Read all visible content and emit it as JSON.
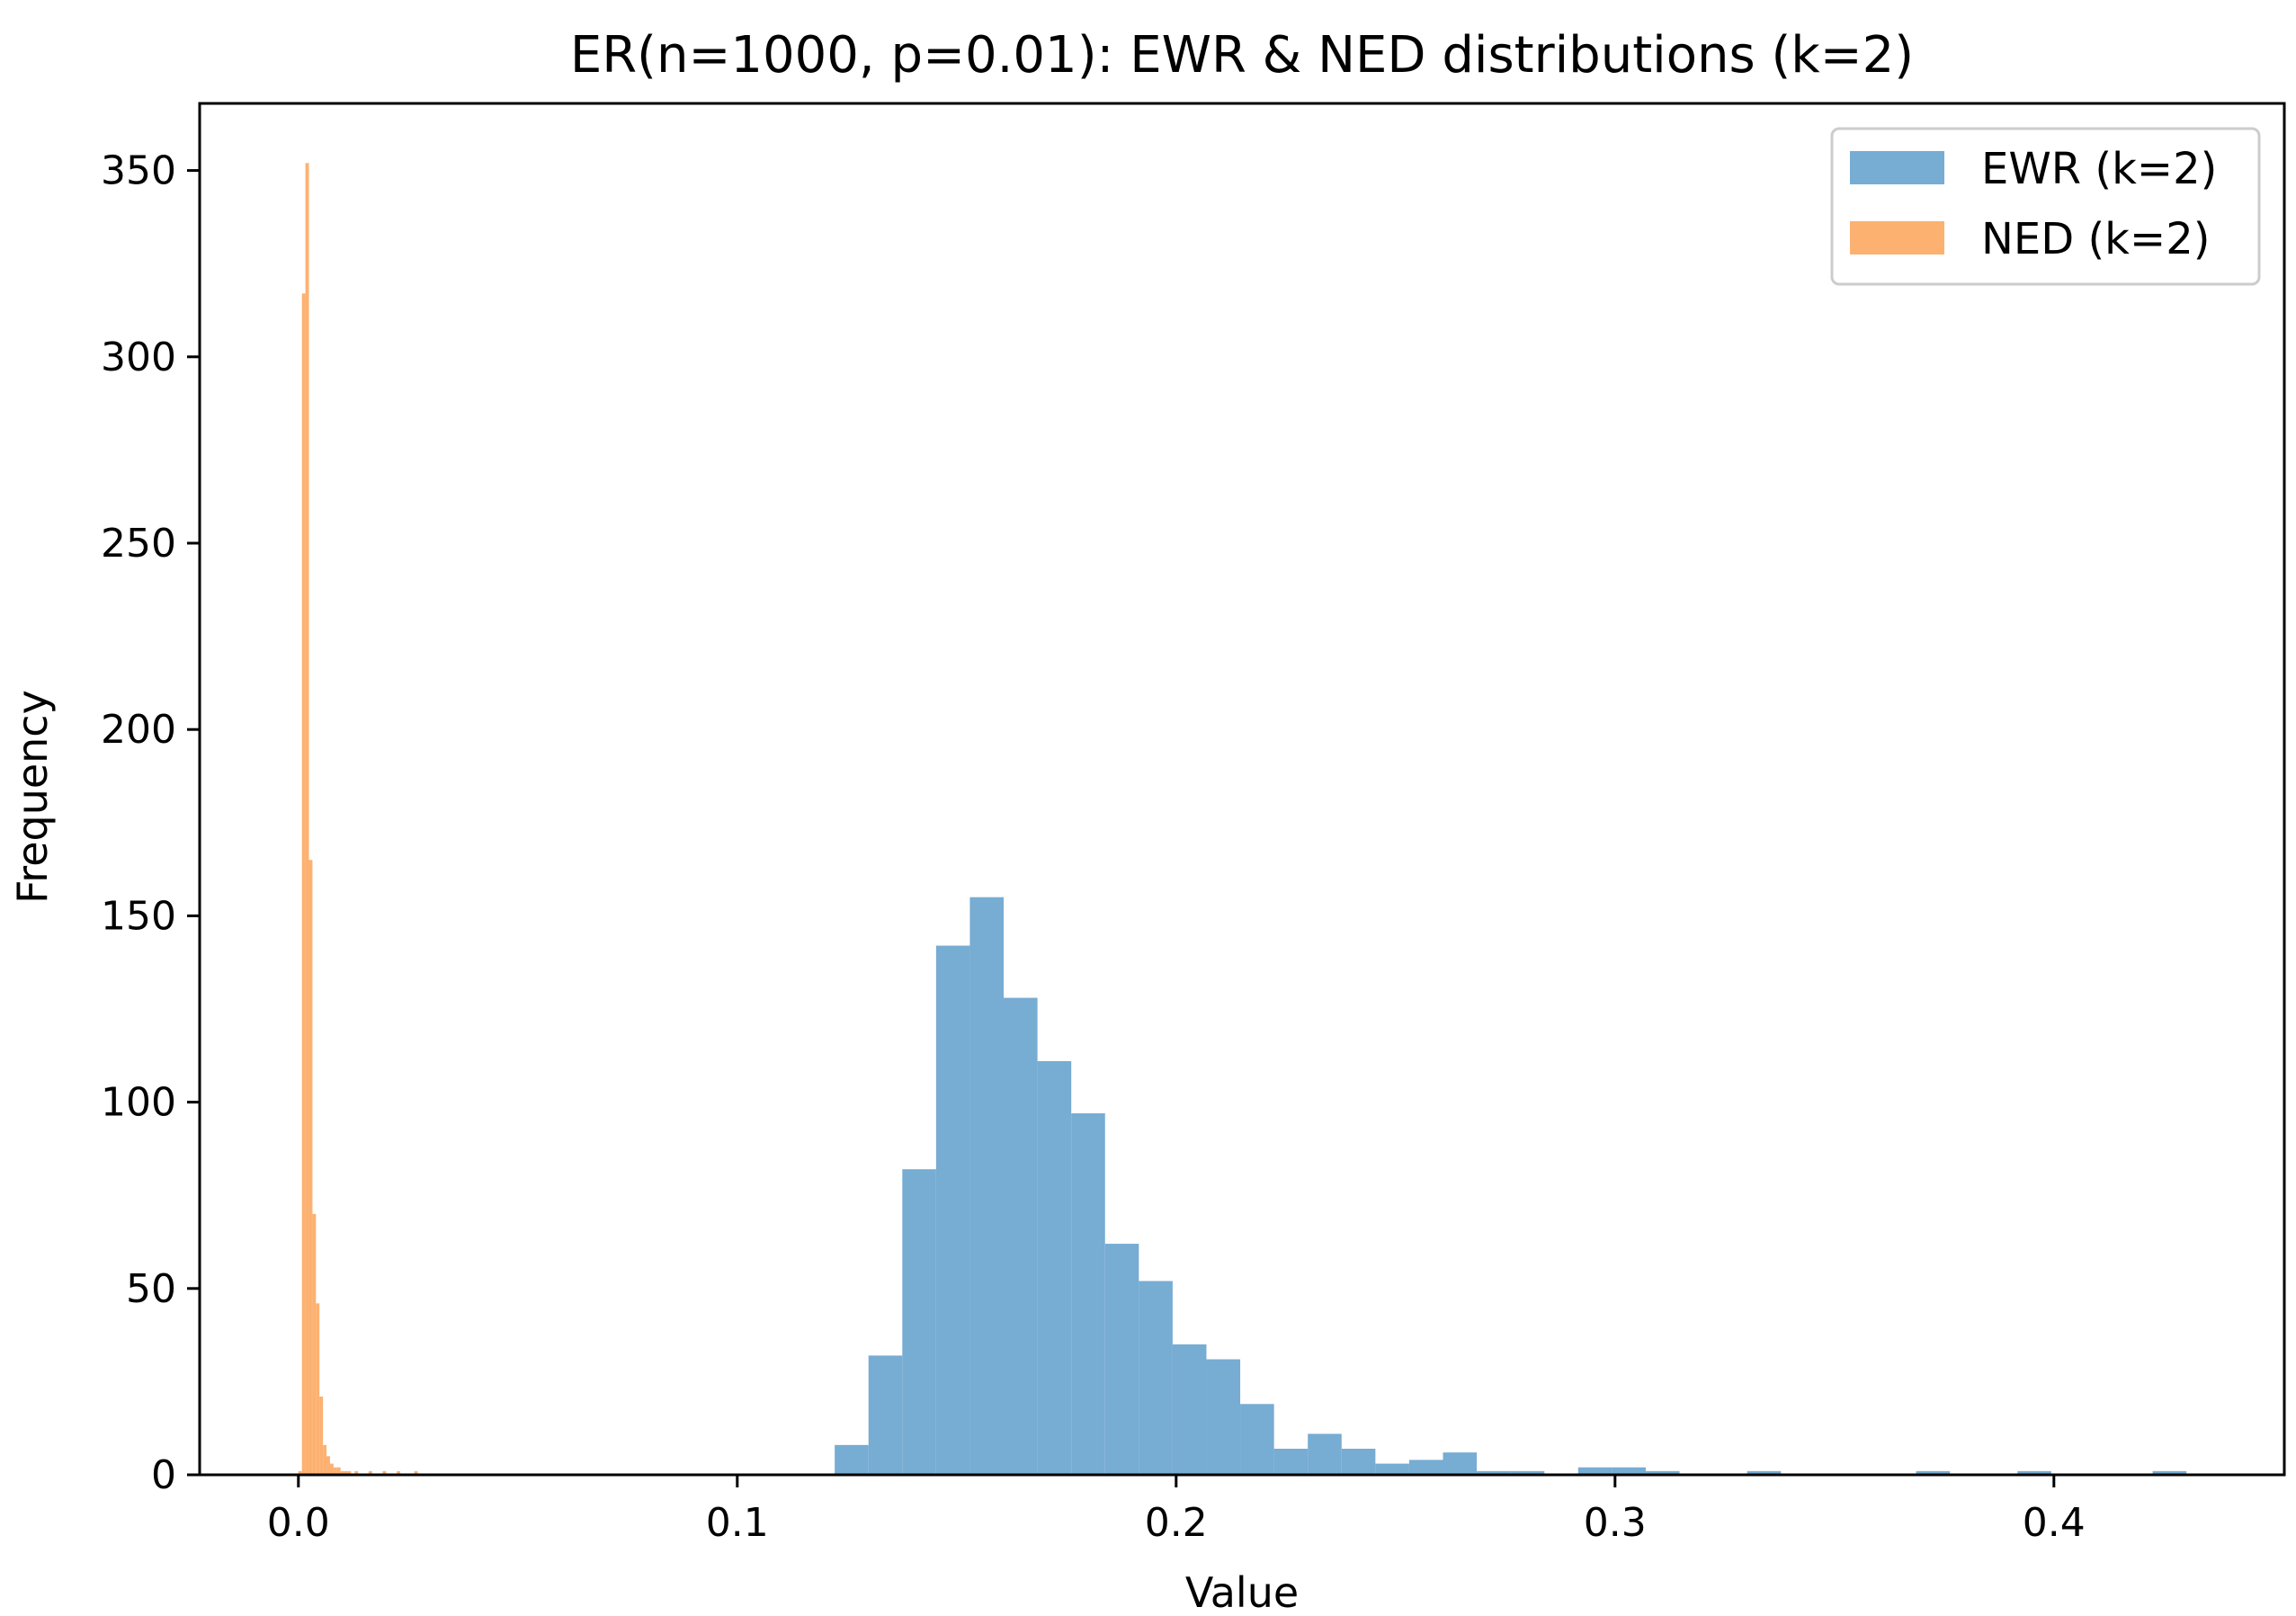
{
  "chart_data": {
    "type": "bar",
    "title": "ER(n=1000, p=0.01): EWR & NED distributions (k=2)",
    "xlabel": "Value",
    "ylabel": "Frequency",
    "xlim": [
      -0.0225,
      0.4525
    ],
    "ylim": [
      0,
      368
    ],
    "xticks": [
      0.0,
      0.1,
      0.2,
      0.3,
      0.4
    ],
    "xtick_labels": [
      "0.0",
      "0.1",
      "0.2",
      "0.3",
      "0.4"
    ],
    "yticks": [
      0,
      50,
      100,
      150,
      200,
      250,
      300,
      350
    ],
    "ytick_labels": [
      "0",
      "50",
      "100",
      "150",
      "200",
      "250",
      "300",
      "350"
    ],
    "grid": false,
    "legend_position": "top-right",
    "series": [
      {
        "name": "EWR (k=2)",
        "color": "#77acd3",
        "bin_edges": [
          0.1222,
          0.1299,
          0.1376,
          0.1453,
          0.153,
          0.1607,
          0.1684,
          0.1761,
          0.1838,
          0.1915,
          0.1992,
          0.2069,
          0.2146,
          0.2223,
          0.23,
          0.2377,
          0.2454,
          0.2531,
          0.2608,
          0.2685,
          0.2762,
          0.2839,
          0.2916,
          0.2993,
          0.307,
          0.3147,
          0.3224,
          0.3301,
          0.3378,
          0.3455,
          0.3532,
          0.3609,
          0.3686,
          0.3763,
          0.384,
          0.3917,
          0.3994,
          0.4071,
          0.4148,
          0.4225,
          0.4302
        ],
        "counts": [
          8,
          32,
          82,
          142,
          155,
          128,
          111,
          97,
          62,
          52,
          35,
          31,
          19,
          7,
          11,
          7,
          3,
          4,
          6,
          1,
          1,
          0,
          2,
          2,
          1,
          0,
          0,
          1,
          0,
          0,
          0,
          0,
          1,
          0,
          0,
          1,
          0,
          0,
          0,
          1
        ]
      },
      {
        "name": "NED (k=2)",
        "color": "#fdb171",
        "bin_edges": [
          0.0,
          0.0008,
          0.0016,
          0.0024,
          0.0032,
          0.004,
          0.0048,
          0.0056,
          0.0064,
          0.0072,
          0.008,
          0.0088,
          0.0096,
          0.0104,
          0.0112,
          0.012,
          0.0128,
          0.0136,
          0.0144,
          0.0152,
          0.016,
          0.0168,
          0.0176,
          0.0184,
          0.0192,
          0.02,
          0.0208,
          0.0216,
          0.0224,
          0.0232,
          0.024,
          0.0248,
          0.0256,
          0.0264,
          0.0272
        ],
        "counts": [
          1,
          317,
          352,
          165,
          70,
          46,
          21,
          8,
          5,
          3,
          2,
          2,
          1,
          1,
          1,
          0,
          1,
          0,
          0,
          0,
          1,
          0,
          0,
          0,
          1,
          0,
          0,
          0,
          1,
          0,
          0,
          0,
          0,
          1
        ]
      }
    ]
  }
}
